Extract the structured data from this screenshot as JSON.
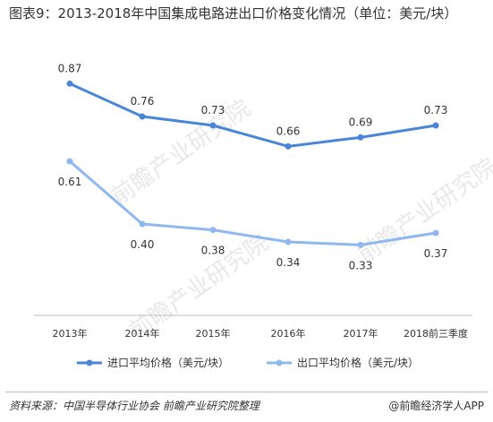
{
  "title": "图表9：2013-2018年中国集成电路进出口价格变化情况（单位：美元/块）",
  "chart_data": {
    "type": "line",
    "categories": [
      "2013年",
      "2014年",
      "2015年",
      "2016年",
      "2017年",
      "2018前三季度"
    ],
    "series": [
      {
        "name": "进口平均价格（美元/块）",
        "values": [
          0.87,
          0.76,
          0.73,
          0.66,
          0.69,
          0.73
        ],
        "color": "#4a86d8"
      },
      {
        "name": "出口平均价格（美元/块）",
        "values": [
          0.61,
          0.4,
          0.38,
          0.34,
          0.33,
          0.37
        ],
        "color": "#8fb8ee"
      }
    ],
    "value_labels": {
      "s0": [
        "0.87",
        "0.76",
        "0.73",
        "0.66",
        "0.69",
        "0.73"
      ],
      "s1": [
        "0.61",
        "0.40",
        "0.38",
        "0.34",
        "0.33",
        "0.37"
      ]
    },
    "ylim": [
      0.1,
      1.0
    ],
    "grid": false,
    "legend_position": "bottom"
  },
  "footer": {
    "source": "资料来源：中国半导体行业协会 前瞻产业研究院整理",
    "brand": "@前瞻经济学人APP"
  },
  "watermark": "前瞻产业研究院"
}
